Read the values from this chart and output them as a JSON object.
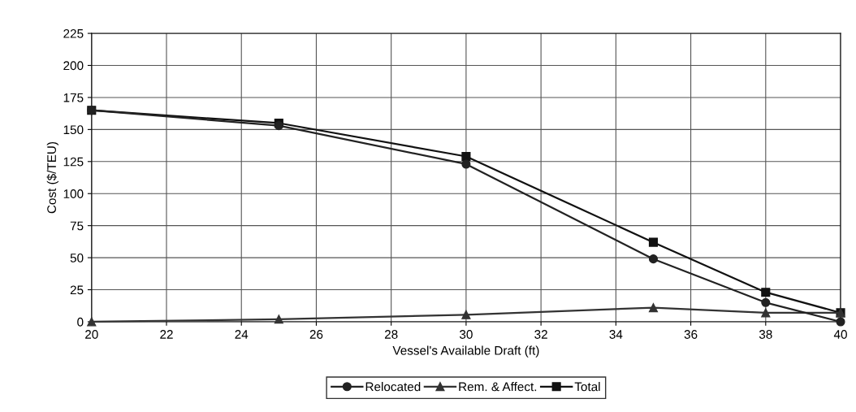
{
  "chart_data": {
    "type": "line",
    "xlabel": "Vessel's Available Draft (ft)",
    "ylabel": "Cost ($/TEU)",
    "x": [
      20,
      25,
      30,
      35,
      38,
      40
    ],
    "series": [
      {
        "name": "Relocated",
        "color": "#222222",
        "marker": "circle",
        "values": [
          165,
          153,
          123,
          49,
          15,
          0
        ]
      },
      {
        "name": "Rem. & Affect.",
        "color": "#333333",
        "marker": "triangle",
        "values": [
          0,
          2,
          5.5,
          11,
          7,
          7
        ]
      },
      {
        "name": "Total",
        "color": "#111111",
        "marker": "square",
        "values": [
          165,
          155,
          129,
          62,
          23,
          7
        ]
      }
    ],
    "xlim": [
      20,
      40
    ],
    "xticks": [
      20,
      22,
      24,
      26,
      28,
      30,
      32,
      34,
      36,
      38,
      40
    ],
    "ylim": [
      0,
      225
    ],
    "yticks": [
      0,
      25,
      50,
      75,
      100,
      125,
      150,
      175,
      200,
      225
    ],
    "grid": true,
    "legend": "bottom",
    "line_style": "solid"
  }
}
